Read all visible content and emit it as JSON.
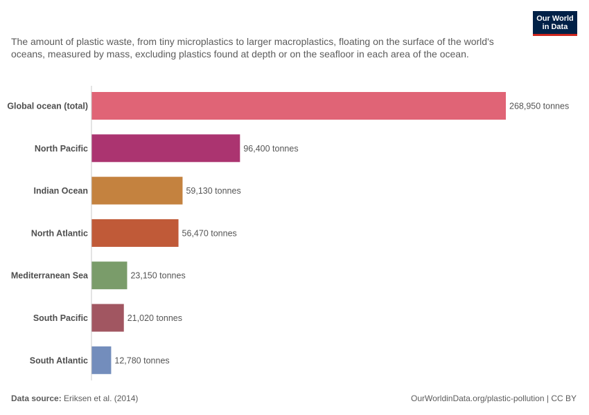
{
  "logo": {
    "line1": "Our World",
    "line2": "in Data"
  },
  "subtitle": "The amount of plastic waste, from tiny microplastics to larger macroplastics, floating on the surface of the world's oceans, measured by mass, excluding plastics found at depth or on the seafloor in each area of the ocean.",
  "footer": {
    "source_label": "Data source:",
    "source_value": "Eriksen et al. (2014)",
    "url": "OurWorldinData.org/plastic-pollution | CC BY"
  },
  "chart_data": {
    "type": "bar",
    "orientation": "horizontal",
    "unit": "tonnes",
    "categories": [
      "Global ocean (total)",
      "North Pacific",
      "Indian Ocean",
      "North Atlantic",
      "Mediterranean Sea",
      "South Pacific",
      "South Atlantic"
    ],
    "values": [
      268950,
      96400,
      59130,
      56470,
      23150,
      21020,
      12780
    ],
    "value_labels": [
      "268,950 tonnes",
      "96,400 tonnes",
      "59,130 tonnes",
      "56,470 tonnes",
      "23,150 tonnes",
      "21,020 tonnes",
      "12,780 tonnes"
    ],
    "colors": [
      "#e06476",
      "#ab3470",
      "#c4823f",
      "#c05a38",
      "#7a9c6a",
      "#a15661",
      "#738dbc"
    ],
    "xlim": [
      0,
      268950
    ],
    "grid": false,
    "legend": "none"
  }
}
